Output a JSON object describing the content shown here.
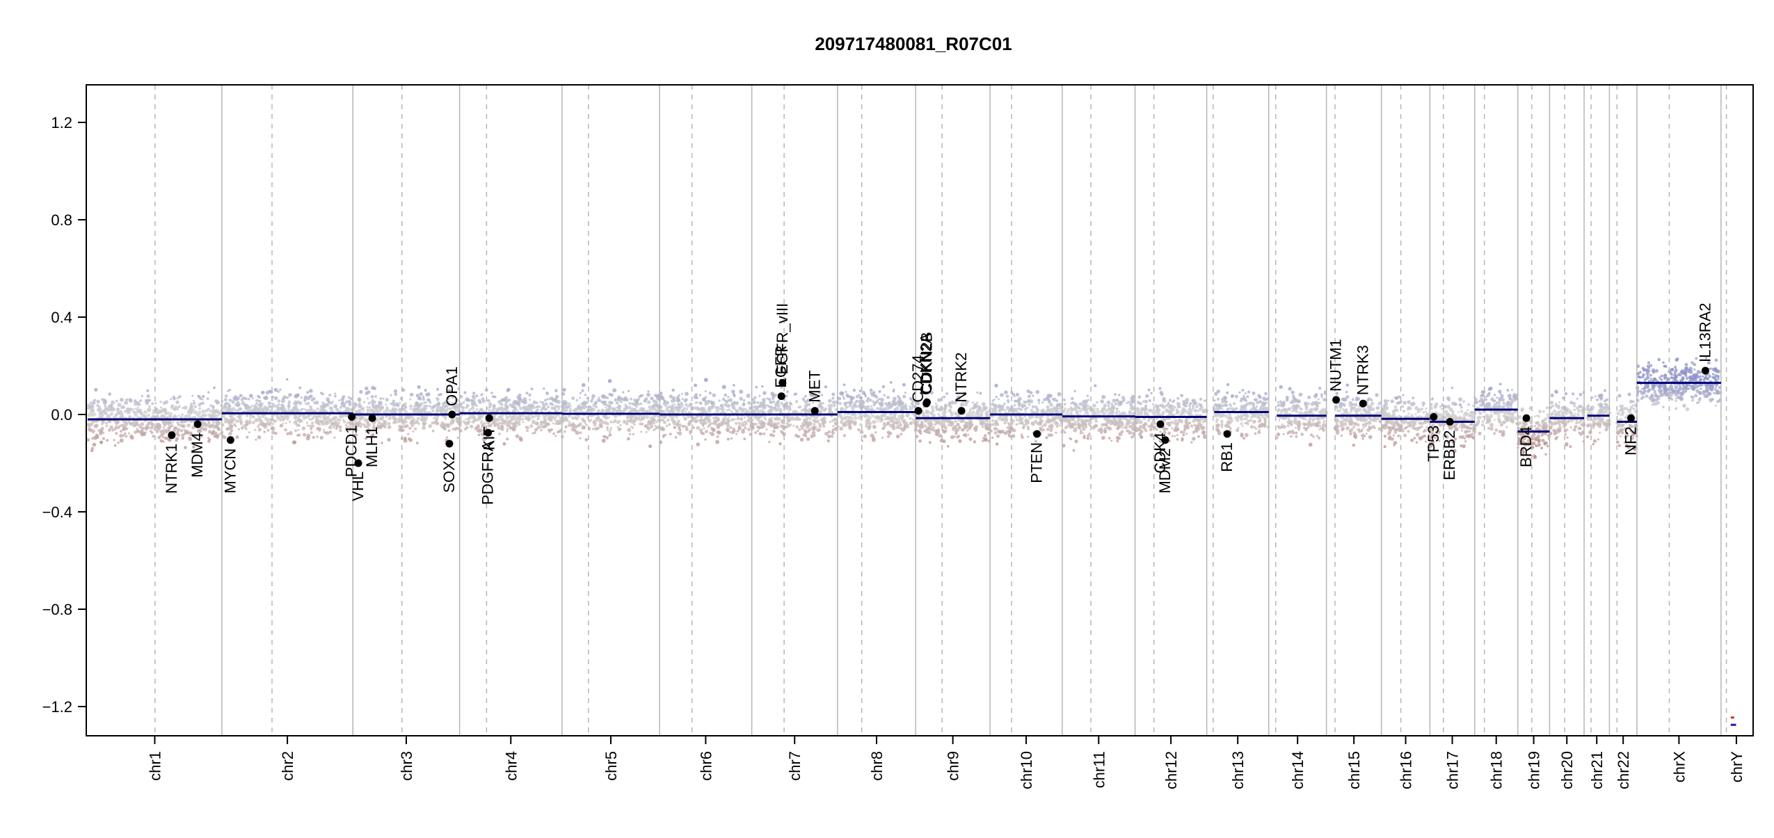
{
  "chart_data": {
    "type": "scatter",
    "title": "209717480081_R07C01",
    "xlabel": "",
    "ylabel": "",
    "ylim": [
      -1.35,
      1.35
    ],
    "yticks": [
      -1.2,
      -0.8,
      -0.4,
      0.0,
      0.4,
      0.8,
      1.2
    ],
    "ytick_labels": [
      "−1.2",
      "−0.8",
      "−0.4",
      "0.0",
      "0.4",
      "0.8",
      "1.2"
    ],
    "grid": false,
    "legend": "none",
    "colors": {
      "gain": "#8f93c6",
      "neutral": "#cfcfcf",
      "loss": "#b98a8a",
      "segment": "#00007a",
      "gene": "#000000",
      "boundary": "#b5b5b5",
      "y_marker_red": "#c8322d",
      "y_marker_blue": "#1c1cb0"
    },
    "chromosomes": [
      {
        "name": "chr1",
        "start": 0,
        "end": 249,
        "centromere": 125,
        "segments": [
          {
            "from": 0,
            "to": 249,
            "value": -0.02
          }
        ]
      },
      {
        "name": "chr2",
        "start": 249,
        "end": 492,
        "centromere": 342,
        "segments": [
          {
            "from": 249,
            "to": 492,
            "value": 0.005
          }
        ]
      },
      {
        "name": "chr3",
        "start": 492,
        "end": 690,
        "centromere": 583,
        "segments": [
          {
            "from": 492,
            "to": 690,
            "value": 0.0
          }
        ]
      },
      {
        "name": "chr4",
        "start": 690,
        "end": 880,
        "centromere": 740,
        "segments": [
          {
            "from": 690,
            "to": 880,
            "value": 0.005
          }
        ]
      },
      {
        "name": "chr5",
        "start": 880,
        "end": 1061,
        "centromere": 929,
        "segments": [
          {
            "from": 880,
            "to": 1061,
            "value": 0.003
          }
        ]
      },
      {
        "name": "chr6",
        "start": 1061,
        "end": 1232,
        "centromere": 1121,
        "segments": [
          {
            "from": 1061,
            "to": 1232,
            "value": 0.0
          }
        ]
      },
      {
        "name": "chr7",
        "start": 1232,
        "end": 1391,
        "centromere": 1292,
        "segments": [
          {
            "from": 1232,
            "to": 1391,
            "value": 0.0
          }
        ]
      },
      {
        "name": "chr8",
        "start": 1391,
        "end": 1536,
        "centromere": 1436,
        "segments": [
          {
            "from": 1391,
            "to": 1536,
            "value": 0.01
          }
        ]
      },
      {
        "name": "chr9",
        "start": 1536,
        "end": 1674,
        "centromere": 1585,
        "segments": [
          {
            "from": 1536,
            "to": 1674,
            "value": -0.015
          }
        ]
      },
      {
        "name": "chr10",
        "start": 1674,
        "end": 1808,
        "centromere": 1714,
        "segments": [
          {
            "from": 1674,
            "to": 1808,
            "value": 0.0
          }
        ]
      },
      {
        "name": "chr11",
        "start": 1808,
        "end": 1943,
        "centromere": 1861,
        "segments": [
          {
            "from": 1808,
            "to": 1943,
            "value": -0.008
          }
        ]
      },
      {
        "name": "chr12",
        "start": 1943,
        "end": 2076,
        "centromere": 1978,
        "segments": [
          {
            "from": 1943,
            "to": 2076,
            "value": -0.01
          }
        ]
      },
      {
        "name": "chr13",
        "start": 2076,
        "end": 2191,
        "centromere": 2088,
        "segments": [
          {
            "from": 2090,
            "to": 2191,
            "value": 0.01
          }
        ]
      },
      {
        "name": "chr14",
        "start": 2191,
        "end": 2298,
        "centromere": 2204,
        "segments": [
          {
            "from": 2206,
            "to": 2298,
            "value": -0.005
          }
        ]
      },
      {
        "name": "chr15",
        "start": 2298,
        "end": 2400,
        "centromere": 2314,
        "segments": [
          {
            "from": 2314,
            "to": 2400,
            "value": -0.005
          }
        ]
      },
      {
        "name": "chr16",
        "start": 2400,
        "end": 2490,
        "centromere": 2436,
        "segments": [
          {
            "from": 2400,
            "to": 2490,
            "value": -0.018
          }
        ]
      },
      {
        "name": "chr17",
        "start": 2490,
        "end": 2573,
        "centromere": 2515,
        "segments": [
          {
            "from": 2490,
            "to": 2573,
            "value": -0.03
          }
        ]
      },
      {
        "name": "chr18",
        "start": 2573,
        "end": 2653,
        "centromere": 2591,
        "segments": [
          {
            "from": 2573,
            "to": 2653,
            "value": 0.02
          }
        ]
      },
      {
        "name": "chr19",
        "start": 2653,
        "end": 2712,
        "centromere": 2679,
        "segments": [
          {
            "from": 2653,
            "to": 2712,
            "value": -0.07
          }
        ]
      },
      {
        "name": "chr20",
        "start": 2712,
        "end": 2776,
        "centromere": 2740,
        "segments": [
          {
            "from": 2712,
            "to": 2776,
            "value": -0.015
          }
        ]
      },
      {
        "name": "chr21",
        "start": 2776,
        "end": 2823,
        "centromere": 2789,
        "segments": [
          {
            "from": 2782,
            "to": 2823,
            "value": -0.005
          }
        ]
      },
      {
        "name": "chr22",
        "start": 2823,
        "end": 2874,
        "centromere": 2837,
        "segments": [
          {
            "from": 2837,
            "to": 2874,
            "value": -0.03
          }
        ]
      },
      {
        "name": "chrX",
        "start": 2874,
        "end": 3030,
        "centromere": 2934,
        "segments": [
          {
            "from": 2874,
            "to": 3030,
            "value": 0.13
          }
        ]
      },
      {
        "name": "chrY",
        "start": 3030,
        "end": 3087,
        "centromere": 3040,
        "segments": []
      }
    ],
    "chrY_markers": [
      {
        "value": -1.245,
        "color": "red"
      },
      {
        "value": -1.275,
        "color": "blue"
      }
    ],
    "genes": [
      {
        "name": "NTRK1",
        "x": 156,
        "value": -0.085
      },
      {
        "name": "MDM4",
        "x": 204,
        "value": -0.04
      },
      {
        "name": "MYCN",
        "x": 265,
        "value": -0.105
      },
      {
        "name": "PDCD1",
        "x": 490,
        "value": -0.01
      },
      {
        "name": "VHL",
        "x": 502,
        "value": -0.2
      },
      {
        "name": "MLH1",
        "x": 528,
        "value": -0.015
      },
      {
        "name": "SOX2",
        "x": 671,
        "value": -0.12
      },
      {
        "name": "OPA1",
        "x": 676,
        "value": 0.0
      },
      {
        "name": "PDGFRA",
        "x": 743,
        "value": -0.075
      },
      {
        "name": "KIT",
        "x": 745,
        "value": -0.015
      },
      {
        "name": "EGFR",
        "x": 1287,
        "value": 0.075
      },
      {
        "name": "EGFR_vIII",
        "x": 1289,
        "value": 0.13
      },
      {
        "name": "MET",
        "x": 1349,
        "value": 0.015
      },
      {
        "name": "CD274",
        "x": 1541,
        "value": 0.015
      },
      {
        "name": "CDKN2A",
        "x": 1556,
        "value": 0.045
      },
      {
        "name": "CDKN2B",
        "x": 1557,
        "value": 0.05
      },
      {
        "name": "NTRK2",
        "x": 1621,
        "value": 0.015
      },
      {
        "name": "PTEN",
        "x": 1761,
        "value": -0.08
      },
      {
        "name": "CDK4",
        "x": 1990,
        "value": -0.04
      },
      {
        "name": "MDM2",
        "x": 1999,
        "value": -0.105
      },
      {
        "name": "RB1",
        "x": 2114,
        "value": -0.08
      },
      {
        "name": "NUTM1",
        "x": 2316,
        "value": 0.06
      },
      {
        "name": "NTRK3",
        "x": 2366,
        "value": 0.045
      },
      {
        "name": "TP53",
        "x": 2497,
        "value": -0.01
      },
      {
        "name": "ERBB2",
        "x": 2527,
        "value": -0.03
      },
      {
        "name": "BRD4",
        "x": 2669,
        "value": -0.015
      },
      {
        "name": "NF2",
        "x": 2863,
        "value": -0.015
      },
      {
        "name": "IL13RA2",
        "x": 3001,
        "value": 0.18
      }
    ]
  }
}
